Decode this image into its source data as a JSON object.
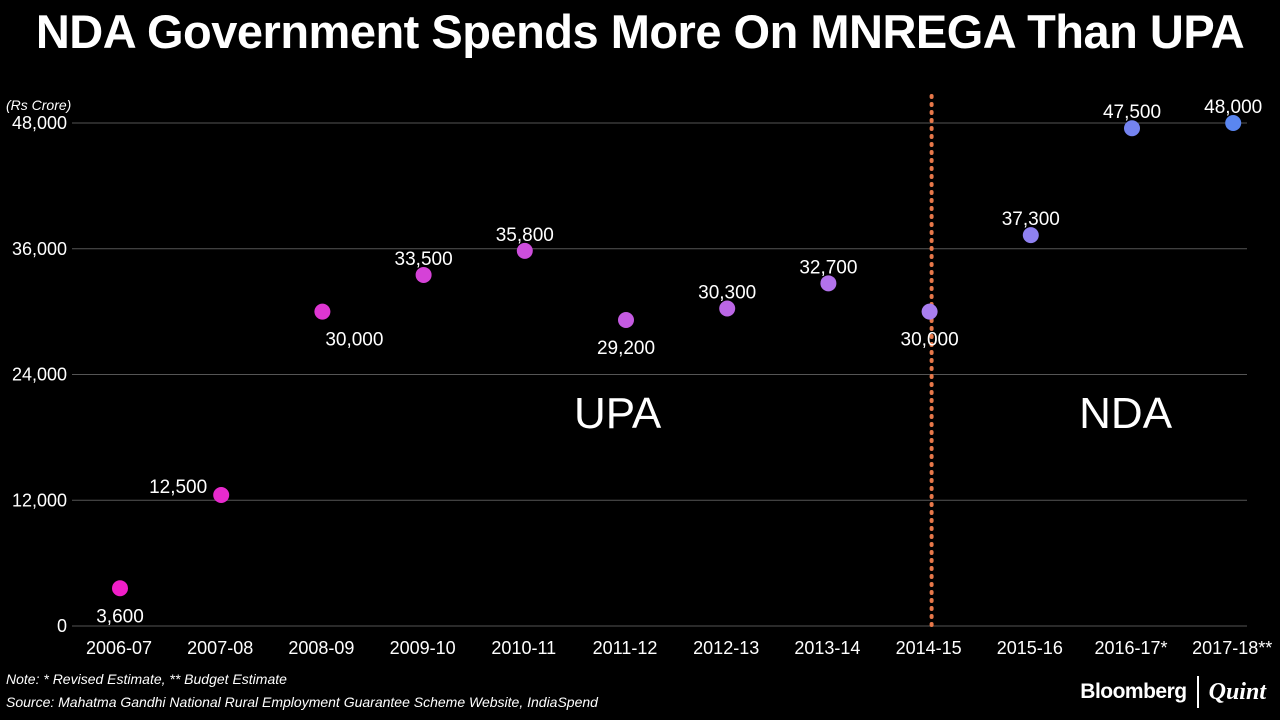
{
  "title": "NDA Government Spends More On MNREGA Than UPA",
  "notes": {
    "line1": "Note: * Revised Estimate, ** Budget Estimate",
    "line2": "Source: Mahatma Gandhi National Rural Employment Guarantee Scheme Website, IndiaSpend"
  },
  "branding": {
    "primary": "Bloomberg",
    "secondary": "Quint"
  },
  "colors": {
    "background": "#000000",
    "grid": "#555555",
    "divider": "#e8784a",
    "upa_start": "#f01ec8",
    "upa_end": "#a97ef0",
    "nda_end": "#5a86f0"
  },
  "chart_data": {
    "type": "line",
    "title": "NDA Government Spends More On MNREGA Than UPA",
    "ylabel": "(Rs Crore)",
    "xlabel": "",
    "ylim": [
      0,
      48000
    ],
    "yticks": [
      0,
      12000,
      24000,
      36000,
      48000
    ],
    "ytick_labels": [
      "0",
      "12,000",
      "24,000",
      "36,000",
      "48,000"
    ],
    "grid": true,
    "categories": [
      "2006-07",
      "2007-08",
      "2008-09",
      "2009-10",
      "2010-11",
      "2011-12",
      "2012-13",
      "2013-14",
      "2014-15",
      "2015-16",
      "2016-17*",
      "2017-18**"
    ],
    "values": [
      3600,
      12500,
      30000,
      33500,
      35800,
      29200,
      30300,
      32700,
      30000,
      37300,
      47500,
      48000
    ],
    "data_labels": [
      "3,600",
      "12,500",
      "30,000",
      "33,500",
      "35,800",
      "29,200",
      "30,300",
      "32,700",
      "30,000",
      "37,300",
      "47,500",
      "48,000"
    ],
    "divider_after_category": "2014-15",
    "annotations": [
      {
        "text": "UPA",
        "region": "before-divider"
      },
      {
        "text": "NDA",
        "region": "after-divider"
      }
    ]
  }
}
